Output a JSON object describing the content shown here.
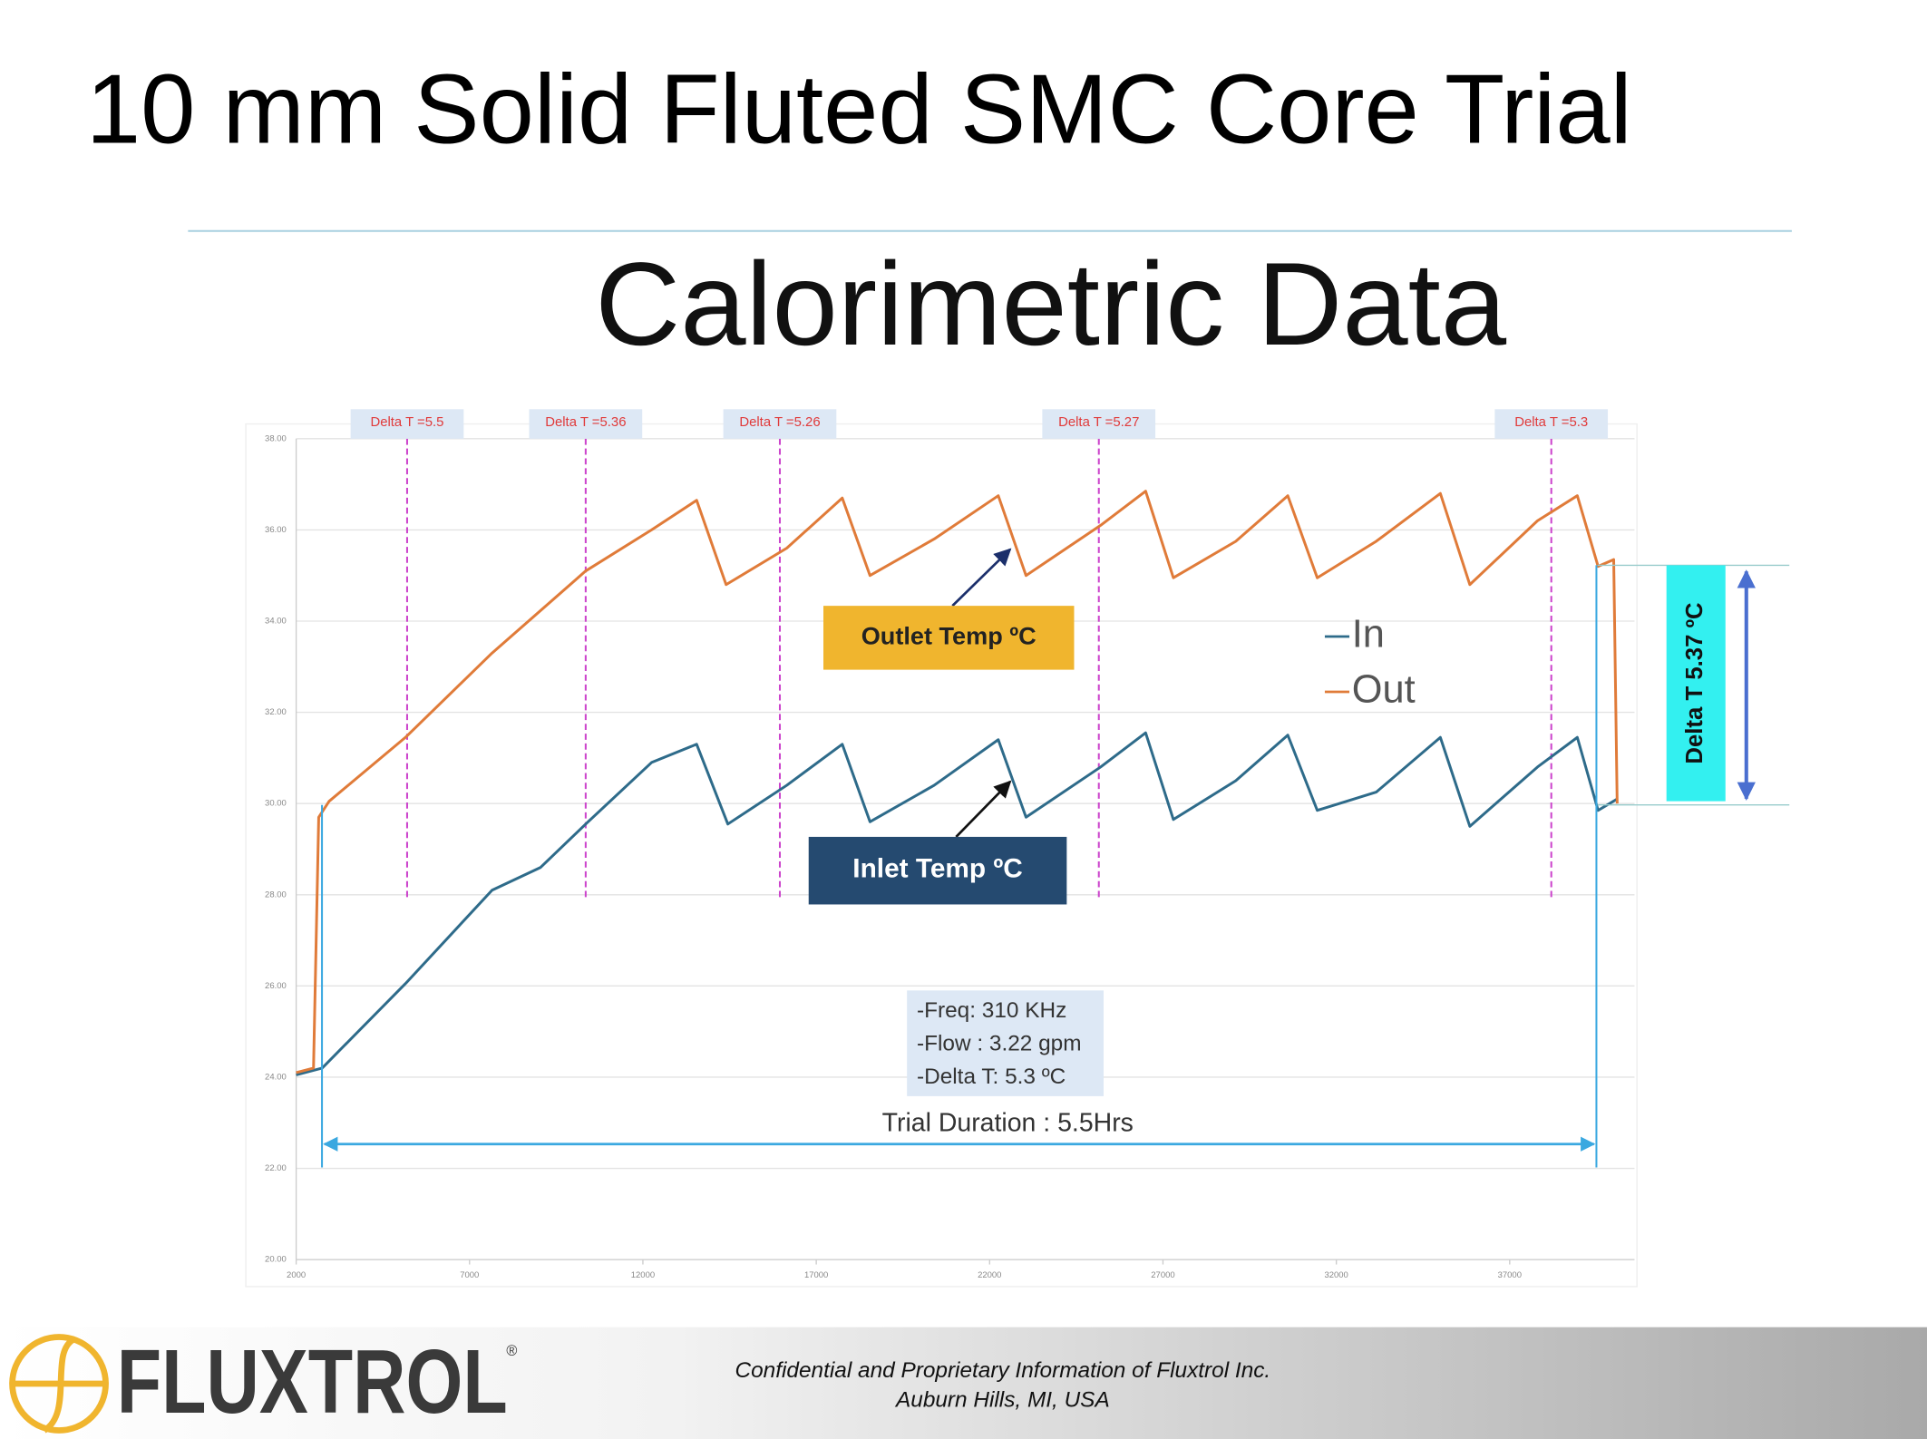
{
  "slide_title": "10 mm Solid Fluted SMC Core Trial",
  "chart_data": {
    "type": "line",
    "title": "Calorimetric Data",
    "xlim": [
      2000,
      40600
    ],
    "xticks": [
      2000,
      7000,
      12000,
      17000,
      22000,
      27000,
      32000,
      37000
    ],
    "ylim": [
      20,
      38
    ],
    "yticks": [
      {
        "value": 20,
        "label": "20.00"
      },
      {
        "value": 22,
        "label": "22.00"
      },
      {
        "value": 24,
        "label": "24.00"
      },
      {
        "value": 26,
        "label": "26.00"
      },
      {
        "value": 28,
        "label": "28.00"
      },
      {
        "value": 30,
        "label": "30.00"
      },
      {
        "value": 32,
        "label": "32.00"
      },
      {
        "value": 34,
        "label": "34.00"
      },
      {
        "value": 36,
        "label": "36.00"
      },
      {
        "value": 38,
        "label": "38.00"
      }
    ],
    "grid": true,
    "legend": "right",
    "series": [
      {
        "name": "In",
        "color": "#2e6b8a",
        "x": [
          2000,
          2750,
          5150,
          7650,
          9050,
          10350,
          12250,
          13550,
          14450,
          16150,
          17750,
          18550,
          20400,
          22250,
          23050,
          25200,
          26500,
          27300,
          29100,
          30600,
          31450,
          33150,
          35000,
          35850,
          37800,
          38950,
          39550,
          40100
        ],
        "values": [
          24.05,
          24.2,
          26.05,
          28.1,
          28.6,
          29.55,
          30.9,
          31.3,
          29.55,
          30.4,
          31.3,
          29.6,
          30.4,
          31.4,
          29.7,
          30.8,
          31.55,
          29.65,
          30.5,
          31.5,
          29.85,
          30.25,
          31.45,
          29.5,
          30.8,
          31.45,
          29.85,
          30.1
        ]
      },
      {
        "name": "Out",
        "color": "#e07b39",
        "x": [
          2000,
          2500,
          2650,
          2950,
          5150,
          7650,
          10350,
          12250,
          13550,
          14400,
          16150,
          17750,
          18550,
          20400,
          22250,
          23050,
          25200,
          26500,
          27300,
          29100,
          30600,
          31450,
          33150,
          35000,
          35850,
          37800,
          38950,
          39550,
          40000,
          40100
        ],
        "values": [
          24.1,
          24.2,
          29.7,
          30.05,
          31.45,
          33.3,
          35.1,
          36.0,
          36.65,
          34.8,
          35.6,
          36.7,
          35.0,
          35.8,
          36.75,
          35.0,
          36.1,
          36.85,
          34.95,
          35.75,
          36.75,
          34.95,
          35.75,
          36.8,
          34.8,
          36.2,
          36.75,
          35.2,
          35.35,
          30.0
        ]
      }
    ],
    "annotations": [
      {
        "label": "Delta T =5.5",
        "x": 5200
      },
      {
        "label": "Delta T =5.36",
        "x": 10350
      },
      {
        "label": "Delta T =5.26",
        "x": 15950
      },
      {
        "label": "Delta T =5.27",
        "x": 25150
      },
      {
        "label": "Delta T =5.3",
        "x": 38200
      }
    ],
    "outlet_callout": "Outlet Temp ºC",
    "inlet_callout": "Inlet Temp ºC",
    "info_box": [
      "-Freq: 310 KHz",
      "-Flow : 3.22 gpm",
      "-Delta T: 5.3 ºC"
    ],
    "duration_label": "Trial Duration : 5.5Hrs",
    "delta_label": "Delta T 5.37 ºC"
  },
  "footer": {
    "logo": "FLUXTROL",
    "registered": "®",
    "lines": [
      "Confidential and Proprietary Information of Fluxtrol Inc.",
      "Auburn Hills, MI, USA"
    ]
  }
}
